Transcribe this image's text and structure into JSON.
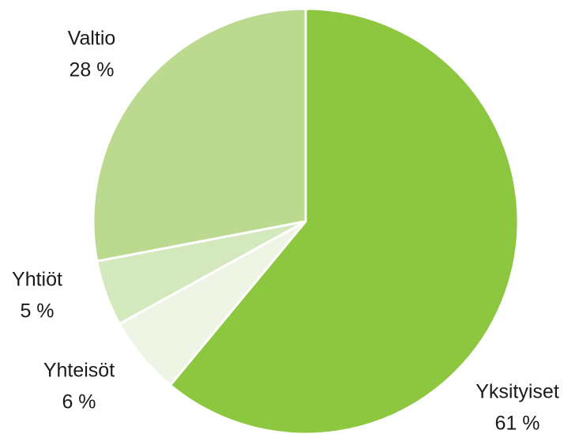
{
  "chart_data": {
    "type": "pie",
    "categories": [
      "Yksityiset",
      "Yhteisöt",
      "Yhtiöt",
      "Valtio"
    ],
    "values": [
      61,
      6,
      5,
      28
    ],
    "value_labels": [
      "61 %",
      "6 %",
      "5 %",
      "28 %"
    ],
    "colors": [
      "#8dc63f",
      "#eef5e4",
      "#d3e8bc",
      "#bbd98f"
    ]
  }
}
